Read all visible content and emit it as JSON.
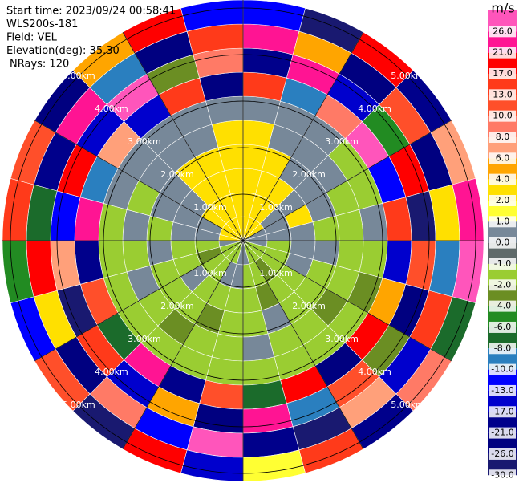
{
  "chart_data": {
    "type": "ppi",
    "info": [
      "Start time: 2023/09/24 00:58:41",
      "WLS200s-181",
      "Field: VEL",
      "Elevation(deg): 35.30",
      "NRays: 120"
    ],
    "unit": "m/s",
    "rings": [
      {
        "value": 1,
        "label": "1.00km"
      },
      {
        "value": 2,
        "label": "2.00km"
      },
      {
        "value": 3,
        "label": "3.00km"
      },
      {
        "value": 4,
        "label": "4.00km"
      },
      {
        "value": 5,
        "label": "5.00km"
      }
    ],
    "colorbar_ticks": [
      {
        "value": 26,
        "label": "26.0"
      },
      {
        "value": 21,
        "label": "21.0"
      },
      {
        "value": 17,
        "label": "17.0"
      },
      {
        "value": 13,
        "label": "13.0"
      },
      {
        "value": 10,
        "label": "10.0"
      },
      {
        "value": 8,
        "label": "8.0"
      },
      {
        "value": 6,
        "label": "6.0"
      },
      {
        "value": 4,
        "label": "4.0"
      },
      {
        "value": 2,
        "label": "2.0"
      },
      {
        "value": 1,
        "label": "1.0"
      },
      {
        "value": 0,
        "label": "0.0"
      },
      {
        "value": -1,
        "label": "-1.0"
      },
      {
        "value": -2,
        "label": "-2.0"
      },
      {
        "value": -4,
        "label": "-4.0"
      },
      {
        "value": -6,
        "label": "-6.0"
      },
      {
        "value": -8,
        "label": "-8.0"
      },
      {
        "value": -10,
        "label": "-10.0"
      },
      {
        "value": -13,
        "label": "-13.0"
      },
      {
        "value": -17,
        "label": "-17.0"
      },
      {
        "value": -21,
        "label": "-21.0"
      },
      {
        "value": -26,
        "label": "-26.0"
      },
      {
        "value": -30,
        "label": "-30.0"
      }
    ],
    "colorbar_colors": [
      "#ff55bb",
      "#ff1493",
      "#ff0000",
      "#ff3a1a",
      "#ff4f2a",
      "#ff7a66",
      "#ffa07a",
      "#ffa500",
      "#ffe000",
      "#ffff33",
      "#778899",
      "#5f6a6a",
      "#9acd32",
      "#6b8e23",
      "#228b22",
      "#1b6b2b",
      "#2a7fbf",
      "#0000ff",
      "#0000cd",
      "#00008b",
      "#000080",
      "#191970"
    ],
    "field": [
      [
        3,
        3,
        3,
        3,
        3,
        0.5,
        15,
        -20,
        25,
        -12
      ],
      [
        3,
        3,
        3,
        3,
        0.5,
        0.5,
        -8,
        22,
        5,
        -27
      ],
      [
        3,
        3,
        3,
        0.5,
        0.5,
        0.5,
        9,
        -14,
        -22,
        18
      ],
      [
        3,
        0.5,
        0.5,
        0.5,
        0.5,
        -1.5,
        27,
        -5,
        12,
        -18
      ],
      [
        0.5,
        0.5,
        3,
        0.5,
        -1.5,
        -1.5,
        -11,
        19,
        -24,
        7
      ],
      [
        0.5,
        0.5,
        0.5,
        -1.5,
        -1.5,
        0.5,
        14,
        -28,
        3,
        23
      ],
      [
        0.5,
        -1.5,
        0.5,
        0.5,
        -1.5,
        -1.5,
        -16,
        11,
        -9,
        28
      ],
      [
        -1.5,
        -1.5,
        0.5,
        -1.5,
        -1.5,
        -3,
        5,
        -23,
        16,
        -7
      ],
      [
        -1.5,
        -1.5,
        -1.5,
        -1.5,
        -3,
        -1.5,
        20,
        -3,
        -15,
        9
      ],
      [
        -1.5,
        -3,
        -1.5,
        -1.5,
        -1.5,
        -1.5,
        -25,
        13,
        7,
        -19
      ],
      [
        -1.5,
        -1.5,
        -3,
        0.5,
        -1.5,
        -1.5,
        18,
        -9,
        -29,
        14
      ],
      [
        0.5,
        -1.5,
        -1.5,
        -1.5,
        0.5,
        -1.5,
        -6,
        24,
        -17,
        2
      ],
      [
        0.5,
        0.5,
        -1.5,
        -1.5,
        -1.5,
        -1.5,
        11,
        -21,
        27,
        -14
      ],
      [
        -1.5,
        0.5,
        -1.5,
        -3,
        -1.5,
        -1.5,
        -18,
        6,
        -11,
        21
      ],
      [
        -1.5,
        -1.5,
        -1.5,
        -1.5,
        -3,
        -1.5,
        23,
        -15,
        9,
        -26
      ],
      [
        -1.5,
        -1.5,
        0.5,
        -1.5,
        -1.5,
        -1.5,
        -7,
        17,
        -22,
        12
      ],
      [
        -1.5,
        -3,
        -1.5,
        -1.5,
        0.5,
        -1.5,
        13,
        -27,
        4,
        -10
      ],
      [
        0.5,
        -1.5,
        -1.5,
        0.5,
        -1.5,
        -1.5,
        -20,
        8,
        19,
        -4
      ],
      [
        3,
        0.5,
        0.5,
        -1.5,
        0.5,
        -1.5,
        26,
        -12,
        -6,
        16
      ],
      [
        3,
        0.5,
        0.5,
        0.5,
        -1.5,
        0.5,
        -9,
        21,
        -18,
        11
      ],
      [
        3,
        3,
        0.5,
        0.5,
        0.5,
        0.5,
        7,
        -16,
        24,
        -23
      ],
      [
        3,
        3,
        3,
        3,
        0.5,
        0.5,
        -13,
        28,
        -8,
        5
      ],
      [
        3,
        3,
        3,
        3,
        0.5,
        0.5,
        17,
        -2,
        -25,
        19
      ],
      [
        3,
        3,
        3,
        3,
        3,
        0.5,
        -22,
        10,
        15,
        -11
      ]
    ]
  }
}
